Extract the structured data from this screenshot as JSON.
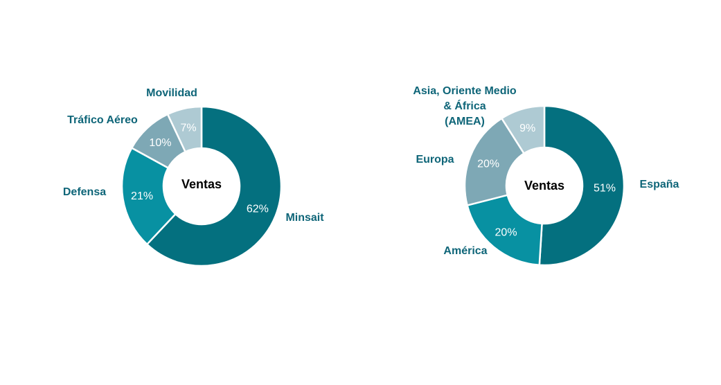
{
  "page": {
    "background_color": "#FFFFFF",
    "text_accent_color": "#0E6578"
  },
  "chart_data": [
    {
      "type": "pie",
      "variant": "donut",
      "title": "",
      "center_label": "Ventas",
      "categories": [
        "Minsait",
        "Defensa",
        "Tráfico Aéreo",
        "Movilidad"
      ],
      "values": [
        62,
        21,
        10,
        7
      ],
      "value_labels": [
        "62%",
        "21%",
        "10%",
        "7%"
      ],
      "unit": "%",
      "colors": [
        "#04707F",
        "#0891A2",
        "#7EA8B5",
        "#AECAD3"
      ],
      "start_angle_deg": 0,
      "direction": "clockwise",
      "separator_color": "#FFFFFF",
      "category_label_color": "#0E6578",
      "value_label_color": "#FFFFFF",
      "legend": "category labels placed around donut"
    },
    {
      "type": "pie",
      "variant": "donut",
      "title": "",
      "center_label": "Ventas",
      "categories": [
        "España",
        "América",
        "Europa",
        "Asia, Oriente Medio\n& África\n(AMEA)"
      ],
      "values": [
        51,
        20,
        20,
        9
      ],
      "value_labels": [
        "51%",
        "20%",
        "20%",
        "9%"
      ],
      "unit": "%",
      "colors": [
        "#04707F",
        "#0891A2",
        "#7EA8B5",
        "#AECAD3"
      ],
      "start_angle_deg": 0,
      "direction": "clockwise",
      "separator_color": "#FFFFFF",
      "category_label_color": "#0E6578",
      "value_label_color": "#FFFFFF",
      "legend": "category labels placed around donut"
    }
  ]
}
